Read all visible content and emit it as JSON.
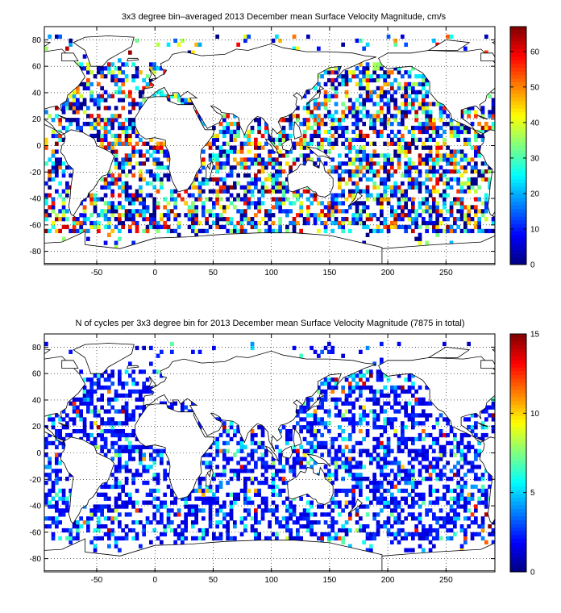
{
  "chart_data": [
    {
      "type": "heatmap",
      "title": "3x3 degree bin–averaged 2013 December mean Surface Velocity Magnitude, cm/s",
      "xlim": [
        -95,
        292
      ],
      "ylim": [
        -90,
        90
      ],
      "xticks": [
        -50,
        0,
        50,
        100,
        150,
        200,
        250
      ],
      "yticks": [
        -80,
        -60,
        -40,
        -20,
        0,
        20,
        40,
        60,
        80
      ],
      "grid": true,
      "colorbar": {
        "min": 0,
        "max": 67,
        "ticks": [
          0,
          10,
          20,
          30,
          40,
          50,
          60
        ],
        "colormap": "jet"
      }
    },
    {
      "type": "heatmap",
      "title": "N of cycles per 3x3 degree bin for 2013 December mean Surface Velocity Magnitude (7875 in total)",
      "xlim": [
        -95,
        292
      ],
      "ylim": [
        -90,
        90
      ],
      "xticks": [
        -50,
        0,
        50,
        100,
        150,
        200,
        250
      ],
      "yticks": [
        -80,
        -60,
        -40,
        -20,
        0,
        20,
        40,
        60,
        80
      ],
      "grid": true,
      "colorbar": {
        "min": 0,
        "max": 15,
        "ticks": [
          0,
          5,
          10,
          15
        ],
        "colormap": "jet"
      }
    }
  ]
}
